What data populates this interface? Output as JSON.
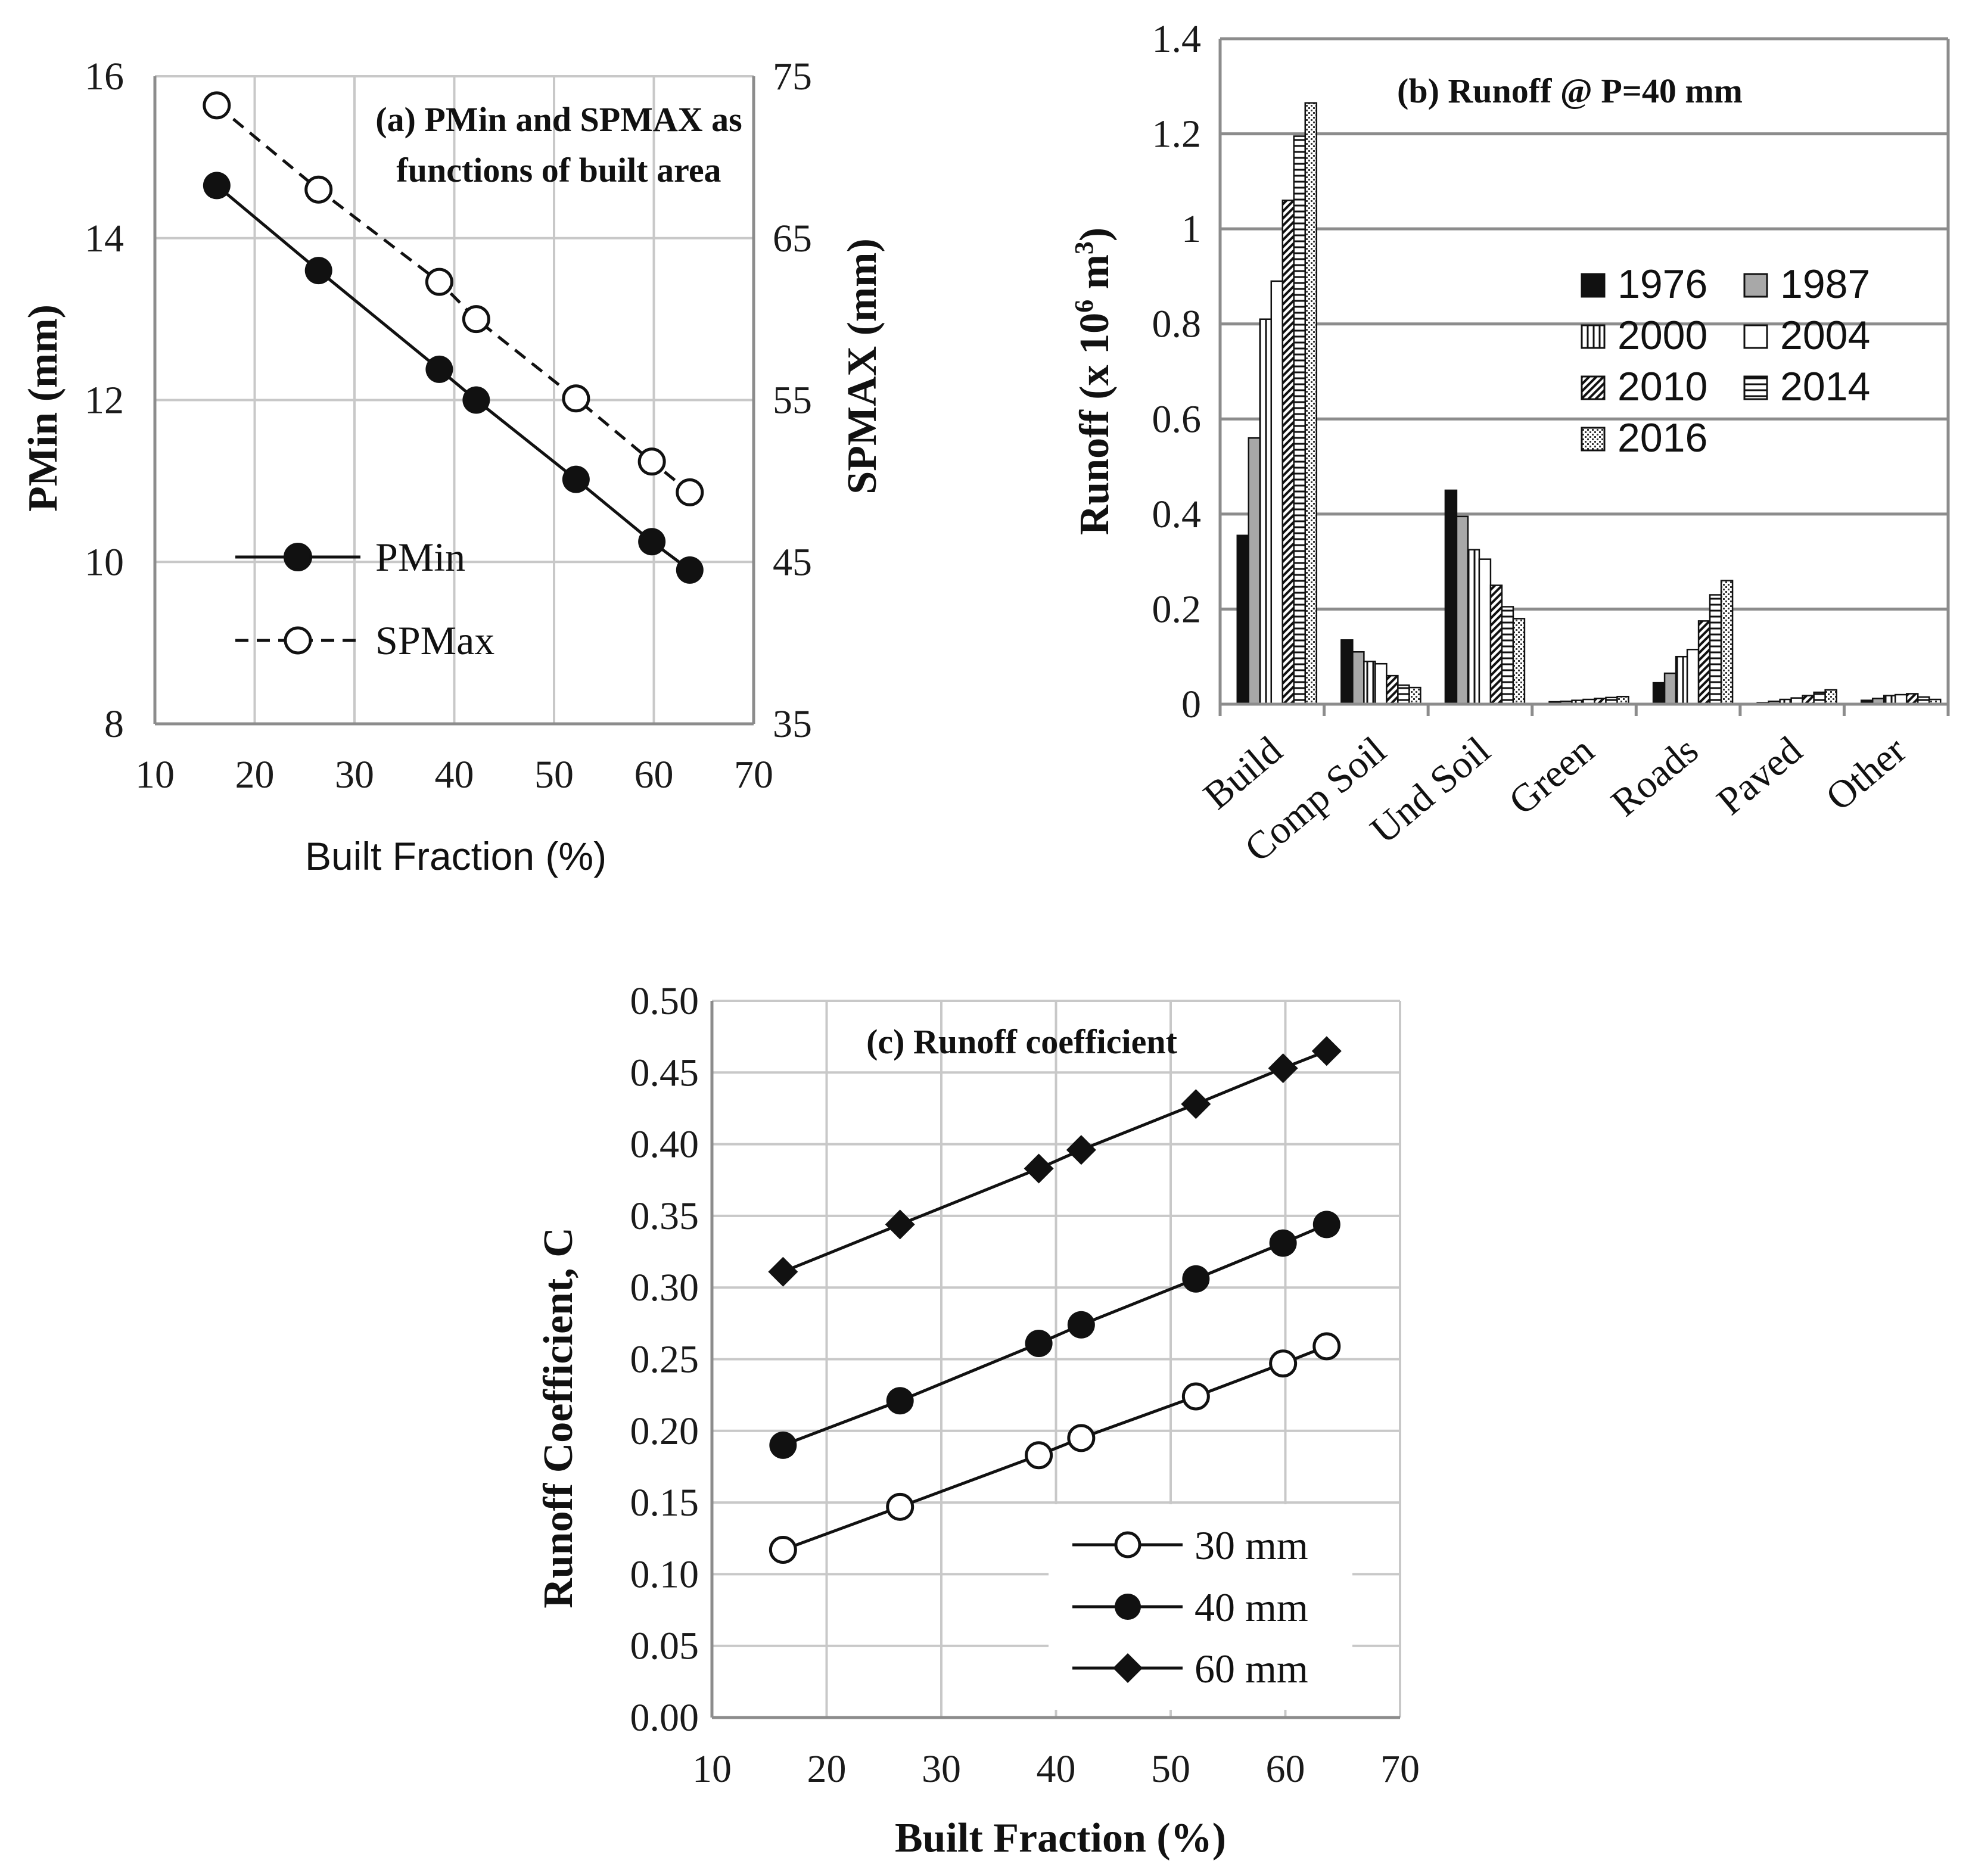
{
  "chart_data": [
    {
      "id": "a",
      "type": "line",
      "title_line1": "(a) PMin and SPMAX as",
      "title_line2": "functions of built area",
      "xlabel": "Built Fraction (%)",
      "ylabel": "PMin (mm)",
      "y2label": "SPMAX (mm)",
      "xlim": [
        10,
        70
      ],
      "ylim": [
        8,
        16
      ],
      "y2lim": [
        35,
        75
      ],
      "xticks": [
        "10",
        "20",
        "30",
        "40",
        "50",
        "60",
        "70"
      ],
      "yticks": [
        "8",
        "10",
        "12",
        "14",
        "16"
      ],
      "y2ticks": [
        "35",
        "45",
        "55",
        "65",
        "75"
      ],
      "x": [
        16.2,
        26.4,
        38.5,
        42.2,
        52.2,
        59.8,
        63.6
      ],
      "series": [
        {
          "name": "PMin",
          "axis": "left",
          "marker": "filled-circle",
          "line": "solid",
          "values": [
            14.65,
            13.6,
            12.38,
            12.0,
            11.02,
            10.25,
            9.9
          ]
        },
        {
          "name": "SPMax",
          "axis": "right",
          "marker": "open-circle",
          "line": "dashed",
          "values": [
            73.2,
            68.0,
            62.3,
            60.0,
            55.1,
            51.2,
            49.3
          ]
        }
      ],
      "legend": "bottom-left",
      "grid": true
    },
    {
      "id": "b",
      "type": "bar",
      "title": "(b) Runoff @ P=40 mm",
      "ylabel_pre": "Runoff (x 10",
      "ylabel_sup1": "6",
      "ylabel_mid": " m",
      "ylabel_sup2": "3",
      "ylabel_post": ")",
      "ylim": [
        0,
        1.4
      ],
      "yticks": [
        "0",
        "0.2",
        "0.4",
        "0.6",
        "0.8",
        "1",
        "1.2",
        "1.4"
      ],
      "categories": [
        "Build",
        "Comp Soil",
        "Und Soil",
        "Green",
        "Roads",
        "Paved",
        "Other"
      ],
      "series": [
        {
          "name": "1976",
          "pattern": "solid-black",
          "values": [
            0.355,
            0.135,
            0.45,
            0.005,
            0.045,
            0.003,
            0.008
          ]
        },
        {
          "name": "1987",
          "pattern": "gray",
          "values": [
            0.56,
            0.11,
            0.395,
            0.006,
            0.065,
            0.006,
            0.012
          ]
        },
        {
          "name": "2000",
          "pattern": "vertical-lines",
          "values": [
            0.81,
            0.09,
            0.325,
            0.008,
            0.1,
            0.01,
            0.018
          ]
        },
        {
          "name": "2004",
          "pattern": "white",
          "values": [
            0.89,
            0.085,
            0.305,
            0.01,
            0.115,
            0.013,
            0.02
          ]
        },
        {
          "name": "2010",
          "pattern": "diagonal",
          "values": [
            1.06,
            0.06,
            0.25,
            0.012,
            0.175,
            0.018,
            0.022
          ]
        },
        {
          "name": "2014",
          "pattern": "horizontal-lines",
          "values": [
            1.195,
            0.04,
            0.205,
            0.014,
            0.23,
            0.025,
            0.015
          ]
        },
        {
          "name": "2016",
          "pattern": "dotted",
          "values": [
            1.265,
            0.035,
            0.18,
            0.016,
            0.26,
            0.03,
            0.01
          ]
        }
      ],
      "legend": "right",
      "grid": true
    },
    {
      "id": "c",
      "type": "line",
      "title": "(c) Runoff coefficient",
      "xlabel": "Built Fraction (%)",
      "ylabel": "Runoff Coefficient, C",
      "xlim": [
        10,
        70
      ],
      "ylim": [
        0,
        0.5
      ],
      "xticks": [
        "10",
        "20",
        "30",
        "40",
        "50",
        "60",
        "70"
      ],
      "yticks": [
        "0.00",
        "0.05",
        "0.10",
        "0.15",
        "0.20",
        "0.25",
        "0.30",
        "0.35",
        "0.40",
        "0.45",
        "0.50"
      ],
      "x": [
        16.2,
        26.4,
        38.5,
        42.2,
        52.2,
        59.8,
        63.6
      ],
      "series": [
        {
          "name": "30 mm",
          "marker": "open-circle",
          "values": [
            0.117,
            0.147,
            0.183,
            0.195,
            0.224,
            0.247,
            0.259
          ]
        },
        {
          "name": "40 mm",
          "marker": "filled-circle",
          "values": [
            0.19,
            0.221,
            0.261,
            0.274,
            0.306,
            0.331,
            0.344
          ]
        },
        {
          "name": "60 mm",
          "marker": "filled-diamond",
          "values": [
            0.311,
            0.344,
            0.383,
            0.396,
            0.428,
            0.453,
            0.465
          ]
        }
      ],
      "legend": "bottom-right",
      "grid": true
    }
  ]
}
